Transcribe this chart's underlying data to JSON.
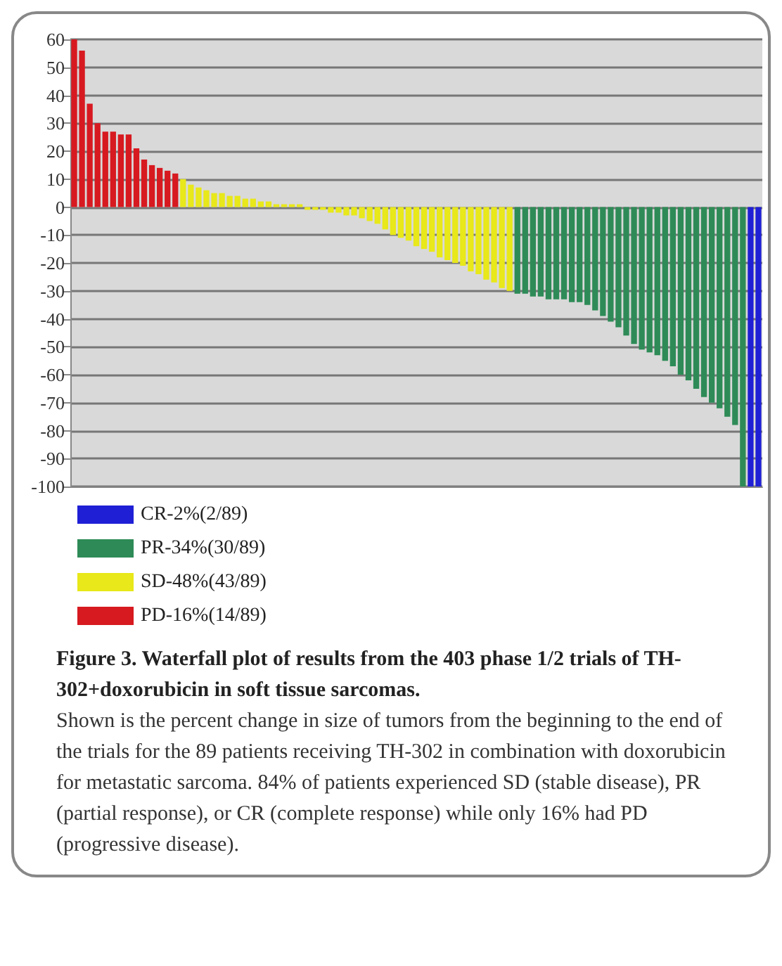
{
  "chart_data": {
    "type": "bar",
    "title": "Figure 3. Waterfall plot of results from the 403 phase 1/2 trials of TH-302+doxorubicin in soft tissue sarcomas.",
    "annotations": [
      "Shown is the percent change in size of tumors from the beginning to the end of the trials for the 89 patients receiving TH-302 in combination with doxorubicin for metastatic sarcoma. 84% of patients experienced SD (stable disease), PR (partial response), or CR (complete response) while only 16% had PD (progressive disease)."
    ],
    "categories": [
      null,
      null,
      null,
      null,
      null,
      null,
      null,
      null,
      null,
      null,
      null,
      null,
      null,
      null,
      null,
      null,
      null,
      null,
      null,
      null,
      null,
      null,
      null,
      null,
      null,
      null,
      null,
      null,
      null,
      null,
      null,
      null,
      null,
      null,
      null,
      null,
      null,
      null,
      null,
      null,
      null,
      null,
      null,
      null,
      null,
      null,
      null,
      null,
      null,
      null,
      null,
      null,
      null,
      null,
      null,
      null,
      null,
      null,
      null,
      null,
      null,
      null,
      null,
      null,
      null,
      null,
      null,
      null,
      null,
      null,
      null,
      null,
      null,
      null,
      null,
      null,
      null,
      null,
      null,
      null,
      null,
      null,
      null,
      null,
      null,
      null,
      null,
      null,
      null
    ],
    "series": [
      {
        "name": "CR-2%(2/89)",
        "color": "#1f1fd6",
        "values": [
          null,
          null,
          null,
          null,
          null,
          null,
          null,
          null,
          null,
          null,
          null,
          null,
          null,
          null,
          null,
          null,
          null,
          null,
          null,
          null,
          null,
          null,
          null,
          null,
          null,
          null,
          null,
          null,
          null,
          null,
          null,
          null,
          null,
          null,
          null,
          null,
          null,
          null,
          null,
          null,
          null,
          null,
          null,
          null,
          null,
          null,
          null,
          null,
          null,
          null,
          null,
          null,
          null,
          null,
          null,
          null,
          null,
          null,
          null,
          null,
          null,
          null,
          null,
          null,
          null,
          null,
          null,
          null,
          null,
          null,
          null,
          null,
          null,
          null,
          null,
          null,
          null,
          null,
          null,
          null,
          null,
          null,
          null,
          null,
          null,
          null,
          null,
          -100,
          -100
        ]
      },
      {
        "name": "PR-34%(30/89)",
        "color": "#2e8b57",
        "values": [
          null,
          null,
          null,
          null,
          null,
          null,
          null,
          null,
          null,
          null,
          null,
          null,
          null,
          null,
          null,
          null,
          null,
          null,
          null,
          null,
          null,
          null,
          null,
          null,
          null,
          null,
          null,
          null,
          null,
          null,
          null,
          null,
          null,
          null,
          null,
          null,
          null,
          null,
          null,
          null,
          null,
          null,
          null,
          null,
          null,
          null,
          null,
          null,
          null,
          null,
          null,
          null,
          null,
          null,
          null,
          null,
          null,
          -31,
          -31,
          -32,
          -32,
          -33,
          -33,
          -33,
          -34,
          -34,
          -35,
          -37,
          -39,
          -41,
          -43,
          -46,
          -49,
          -51,
          -52,
          -53,
          -55,
          -57,
          -60,
          -62,
          -65,
          -68,
          -70,
          -72,
          -75,
          -78,
          -100,
          null,
          null
        ]
      },
      {
        "name": "SD-48%(43/89)",
        "color": "#e8e81a",
        "values": [
          null,
          null,
          null,
          null,
          null,
          null,
          null,
          null,
          null,
          null,
          null,
          null,
          null,
          null,
          10,
          8,
          7,
          6,
          5,
          5,
          4,
          4,
          3,
          3,
          2,
          2,
          1,
          1,
          1,
          1,
          -1,
          -1,
          -1,
          -2,
          -2,
          -3,
          -3,
          -4,
          -5,
          -6,
          -8,
          -10,
          -11,
          -12,
          -14,
          -15,
          -16,
          -18,
          -19,
          -20,
          -21,
          -23,
          -24,
          -26,
          -27,
          -29,
          -30,
          null,
          null,
          null,
          null,
          null,
          null,
          null,
          null,
          null,
          null,
          null,
          null,
          null,
          null,
          null,
          null,
          null,
          null,
          null,
          null,
          null,
          null,
          null,
          null,
          null,
          null,
          null,
          null,
          null,
          null,
          null,
          null
        ]
      },
      {
        "name": "PD-16%(14/89)",
        "color": "#d71920",
        "values": [
          60,
          56,
          37,
          30,
          27,
          27,
          26,
          26,
          21,
          17,
          15,
          14,
          13,
          12,
          null,
          null,
          null,
          null,
          null,
          null,
          null,
          null,
          null,
          null,
          null,
          null,
          null,
          null,
          null,
          null,
          null,
          null,
          null,
          null,
          null,
          null,
          null,
          null,
          null,
          null,
          null,
          null,
          null,
          null,
          null,
          null,
          null,
          null,
          null,
          null,
          null,
          null,
          null,
          null,
          null,
          null,
          null,
          null,
          null,
          null,
          null,
          null,
          null,
          null,
          null,
          null,
          null,
          null,
          null,
          null,
          null,
          null,
          null,
          null,
          null,
          null,
          null,
          null,
          null,
          null,
          null,
          null,
          null,
          null,
          null,
          null,
          null,
          null,
          null
        ]
      }
    ],
    "ylim": [
      -100,
      60
    ],
    "yticks": [
      -100,
      -90,
      -80,
      -70,
      -60,
      -50,
      -40,
      -30,
      -20,
      -10,
      0,
      10,
      20,
      30,
      40,
      50,
      60
    ],
    "grid": "y",
    "legend": "bottom left"
  }
}
